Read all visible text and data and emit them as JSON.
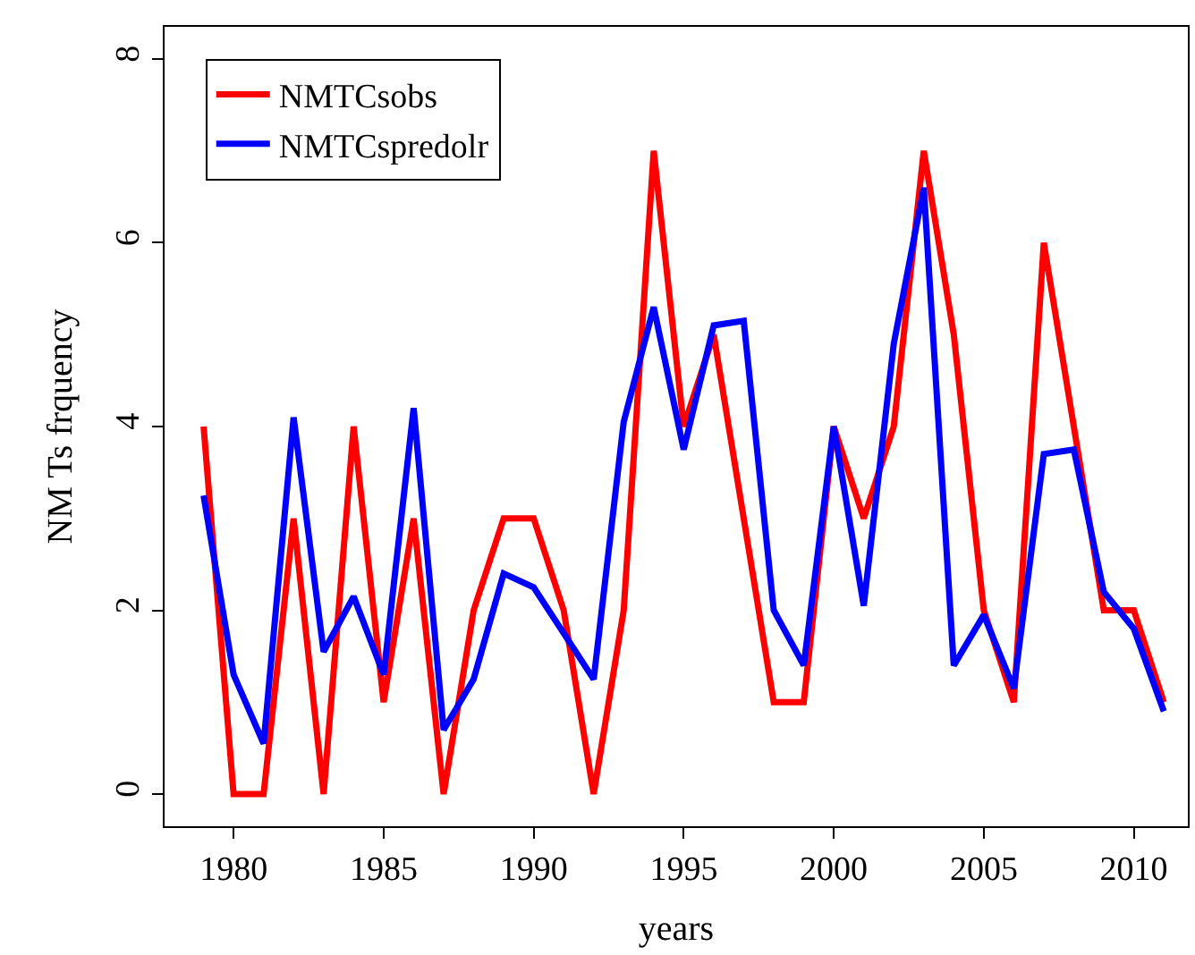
{
  "chart_data": {
    "type": "line",
    "xlabel": "years",
    "ylabel": "NM Ts frquency",
    "x": [
      1979,
      1980,
      1981,
      1982,
      1983,
      1984,
      1985,
      1986,
      1987,
      1988,
      1989,
      1990,
      1991,
      1992,
      1993,
      1994,
      1995,
      1996,
      1997,
      1998,
      1999,
      2000,
      2001,
      2002,
      2003,
      2004,
      2005,
      2006,
      2007,
      2008,
      2009,
      2010,
      2011
    ],
    "series": [
      {
        "name": "NMTCsobs",
        "color": "#ff0000",
        "values": [
          4,
          0,
          0,
          3,
          0,
          4,
          1,
          3,
          0,
          2,
          3,
          3,
          2,
          0,
          2,
          7,
          4,
          5,
          3,
          1,
          1,
          4,
          3,
          4,
          7,
          5,
          2,
          1,
          6,
          4,
          2,
          2,
          1
        ]
      },
      {
        "name": "NMTCspredolr",
        "color": "#0000ff",
        "values": [
          3.25,
          1.3,
          0.55,
          4.1,
          1.55,
          2.15,
          1.3,
          4.2,
          0.7,
          1.25,
          2.4,
          2.25,
          1.75,
          1.25,
          4.05,
          5.3,
          3.75,
          5.1,
          5.15,
          2.0,
          1.4,
          4.0,
          2.05,
          4.9,
          6.6,
          1.4,
          1.95,
          1.15,
          3.7,
          3.75,
          2.2,
          1.8,
          0.9
        ]
      }
    ],
    "xlim": [
      1977.7,
      2011.8
    ],
    "xticks": [
      1980,
      1985,
      1990,
      1995,
      2000,
      2005,
      2010
    ],
    "ylim": [
      -0.35,
      8.35
    ],
    "yticks": [
      0,
      2,
      4,
      6,
      8
    ],
    "legend": "top left",
    "marker": "none",
    "line_style": "solid"
  }
}
